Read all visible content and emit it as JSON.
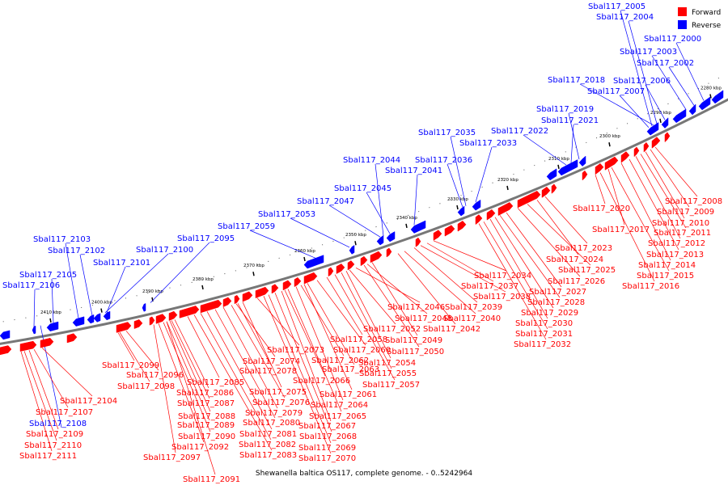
{
  "legend": {
    "forward": {
      "label": "Forward",
      "color": "#ff0000"
    },
    "reverse": {
      "label": "Reverse",
      "color": "#0000ff"
    }
  },
  "caption": "Shewanella baltica OS117, complete genome. - 0..5242964",
  "tick_labels": [
    "2280 kbp",
    "2290 kbp",
    "2300 kbp",
    "2310 kbp",
    "2320 kbp",
    "2330 kbp",
    "2340 kbp",
    "2350 kbp",
    "2360 kbp",
    "2370 kbp",
    "2380 kbp",
    "2390 kbp",
    "2400 kbp",
    "2410 kbp"
  ],
  "reverse_genes": [
    "Sbal117_2005",
    "Sbal117_2004",
    "Sbal117_2000",
    "Sbal117_2003",
    "Sbal117_2002",
    "Sbal117_2018",
    "Sbal117_2006",
    "Sbal117_2007",
    "Sbal117_2019",
    "Sbal117_2021",
    "Sbal117_2022",
    "Sbal117_2035",
    "Sbal117_2033",
    "Sbal117_2044",
    "Sbal117_2036",
    "Sbal117_2041",
    "Sbal117_2045",
    "Sbal117_2047",
    "Sbal117_2053",
    "Sbal117_2059",
    "Sbal117_2095",
    "Sbal117_2100",
    "Sbal117_2103",
    "Sbal117_2102",
    "Sbal117_2101",
    "Sbal117_2105",
    "Sbal117_2106",
    "Sbal117_2108"
  ],
  "forward_genes": [
    "Sbal117_2008",
    "Sbal117_2020",
    "Sbal117_2009",
    "Sbal117_2010",
    "Sbal117_2017",
    "Sbal117_2011",
    "Sbal117_2012",
    "Sbal117_2013",
    "Sbal117_2023",
    "Sbal117_2014",
    "Sbal117_2024",
    "Sbal117_2015",
    "Sbal117_2025",
    "Sbal117_2016",
    "Sbal117_2034",
    "Sbal117_2026",
    "Sbal117_2037",
    "Sbal117_2027",
    "Sbal117_2038",
    "Sbal117_2028",
    "Sbal117_2046",
    "Sbal117_2039",
    "Sbal117_2029",
    "Sbal117_2048",
    "Sbal117_2040",
    "Sbal117_2030",
    "Sbal117_2052",
    "Sbal117_2042",
    "Sbal117_2031",
    "Sbal117_2058",
    "Sbal117_2049",
    "Sbal117_2032",
    "Sbal117_2073",
    "Sbal117_2060",
    "Sbal117_2050",
    "Sbal117_2074",
    "Sbal117_2062",
    "Sbal117_2099",
    "Sbal117_2054",
    "Sbal117_2078",
    "Sbal117_2063",
    "Sbal117_2096",
    "Sbal117_2055",
    "Sbal117_2085",
    "Sbal117_2066",
    "Sbal117_2098",
    "Sbal117_2057",
    "Sbal117_2086",
    "Sbal117_2075",
    "Sbal117_2061",
    "Sbal117_2104",
    "Sbal117_2087",
    "Sbal117_2076",
    "Sbal117_2064",
    "Sbal117_2107",
    "Sbal117_2088",
    "Sbal117_2079",
    "Sbal117_2065",
    "Sbal117_2089",
    "Sbal117_2080",
    "Sbal117_2067",
    "Sbal117_2109",
    "Sbal117_2090",
    "Sbal117_2081",
    "Sbal117_2068",
    "Sbal117_2110",
    "Sbal117_2092",
    "Sbal117_2082",
    "Sbal117_2069",
    "Sbal117_2111",
    "Sbal117_2097",
    "Sbal117_2083",
    "Sbal117_2070",
    "Sbal117_2091"
  ]
}
